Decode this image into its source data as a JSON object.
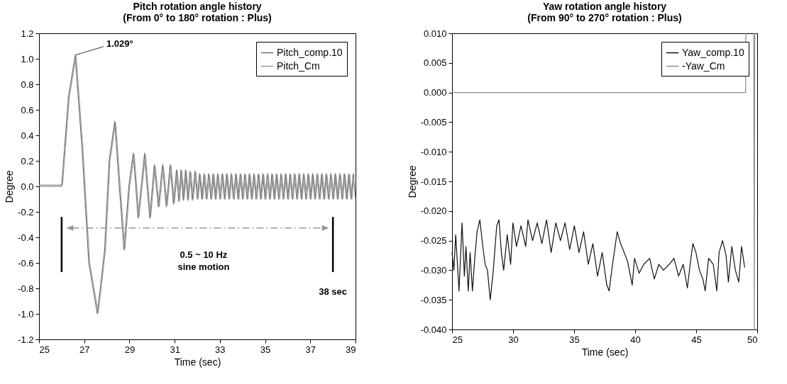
{
  "chart_data": [
    {
      "type": "line",
      "title": "Pitch rotation angle history",
      "subtitle": "(From 0° to 180° rotation : Plus)",
      "xlabel": "Time (sec)",
      "ylabel": "Degree",
      "xlim": [
        25,
        39
      ],
      "xticks": [
        25,
        27,
        29,
        31,
        33,
        35,
        37,
        39
      ],
      "ylim": [
        -1.2,
        1.2
      ],
      "yticks": [
        {
          "value": 1.2,
          "label": "1.2"
        },
        {
          "value": 1,
          "label": "1.0"
        },
        {
          "value": 0.8,
          "label": "0.8"
        },
        {
          "value": 0.6,
          "label": "0.6"
        },
        {
          "value": 0.4,
          "label": "0.4"
        },
        {
          "value": 0.2,
          "label": "0.2"
        },
        {
          "value": 0,
          "label": "0.0"
        },
        {
          "value": -0.2,
          "label": "-0.2"
        },
        {
          "value": -0.4,
          "label": "-0.4"
        },
        {
          "value": -0.6,
          "label": "-0.6"
        },
        {
          "value": -0.8,
          "label": "-0.8"
        },
        {
          "value": -1,
          "label": "-1.0"
        },
        {
          "value": -1.2,
          "label": "-1.2"
        }
      ],
      "grid": false,
      "legend": "top right",
      "marker": "none",
      "annotations": [
        {
          "text": "1.029°",
          "x": 26.6,
          "y": 1.029
        },
        "0.5 ~ 10 Hz\nsine motion"
      ],
      "ref_lines": [
        {
          "axis": "x",
          "value": 26
        },
        {
          "axis": "x",
          "value": 38,
          "label": "38 sec"
        }
      ],
      "series": [
        {
          "name": "Pitch_comp.10",
          "color": "#6e6e6e",
          "x": [
            25,
            26,
            26.3,
            26.6,
            26.9,
            27.2,
            27.58,
            27.9,
            28.1,
            28.35,
            28.55,
            28.76,
            28.97,
            29.17,
            29.28,
            29.38,
            29.52,
            29.67,
            29.78,
            29.9,
            30.1,
            30.28,
            30.46,
            30.63,
            30.8,
            30.95,
            31.08,
            31.18,
            31.28,
            31.38,
            31.48,
            31.58,
            31.68,
            31.78,
            31.9,
            32,
            32.1,
            32.2,
            32.3,
            32.4,
            32.5,
            32.6,
            32.7,
            32.8,
            32.9,
            33,
            33.1,
            33.2,
            33.3,
            33.4,
            33.5,
            33.6,
            33.7,
            33.8,
            33.9,
            34,
            34.1,
            34.2,
            34.3,
            34.4,
            34.5,
            34.6,
            34.7,
            34.8,
            34.9,
            35,
            35.1,
            35.2,
            35.3,
            35.4,
            35.5,
            35.6,
            35.7,
            35.8,
            35.9,
            36,
            36.1,
            36.2,
            36.3,
            36.4,
            36.5,
            36.6,
            36.7,
            36.8,
            36.9,
            37,
            37.1,
            37.2,
            37.3,
            37.4,
            37.5,
            37.6,
            37.7,
            37.8,
            37.9,
            38,
            38.1,
            38.2,
            38.3,
            38.4,
            38.5,
            38.6,
            38.7,
            38.8,
            38.9,
            39
          ],
          "values": [
            0,
            0,
            0.7,
            1.029,
            0.3,
            -0.6,
            -1.0,
            -0.5,
            0.2,
            0.51,
            0,
            -0.5,
            0,
            0.26,
            0,
            -0.25,
            0,
            0.26,
            0,
            -0.25,
            0.17,
            -0.16,
            0.17,
            -0.16,
            0.17,
            -0.14,
            0.13,
            -0.12,
            0.13,
            -0.11,
            0.13,
            -0.11,
            0.12,
            -0.11,
            0.12,
            -0.1,
            0.1,
            -0.1,
            0.1,
            -0.1,
            0.1,
            -0.1,
            0.1,
            -0.1,
            0.1,
            -0.1,
            0.1,
            -0.1,
            0.1,
            -0.1,
            0.1,
            -0.1,
            0.1,
            -0.1,
            0.1,
            -0.1,
            0.1,
            -0.1,
            0.1,
            -0.1,
            0.1,
            -0.1,
            0.1,
            -0.1,
            0.1,
            -0.1,
            0.1,
            -0.1,
            0.1,
            -0.1,
            0.1,
            -0.1,
            0.1,
            -0.1,
            0.1,
            -0.1,
            0.1,
            -0.1,
            0.1,
            -0.1,
            0.1,
            -0.1,
            0.1,
            -0.1,
            0.1,
            -0.1,
            0.1,
            -0.1,
            0.1,
            -0.1,
            0.1,
            -0.1,
            0.1,
            -0.1,
            0.1,
            -0.1,
            0.1,
            -0.1,
            0.1,
            -0.1,
            0.1,
            -0.1,
            0.1,
            -0.1,
            0.1,
            -0.1
          ]
        },
        {
          "name": "Pitch_Cm",
          "color": "#9a9a9a",
          "x": [
            25,
            26.04,
            26.34,
            26.64,
            26.94,
            27.24,
            27.62,
            27.94,
            28.14,
            28.39,
            28.59,
            28.8,
            29.01,
            29.21,
            29.32,
            29.42,
            29.56,
            29.71,
            29.82,
            29.94,
            30.14,
            30.32,
            30.5,
            30.67,
            30.84,
            30.99,
            31.12,
            31.22,
            31.32,
            31.42,
            31.52,
            31.62,
            31.72,
            31.82,
            31.94,
            32.04,
            32.14,
            32.24,
            32.34,
            32.44,
            32.54,
            32.64,
            32.74,
            32.84,
            32.94,
            33.04,
            33.14,
            33.24,
            33.34,
            33.44,
            33.54,
            33.64,
            33.74,
            33.84,
            33.94,
            34.04,
            34.14,
            34.24,
            34.34,
            34.44,
            34.54,
            34.64,
            34.74,
            34.84,
            34.94,
            35.04,
            35.14,
            35.24,
            35.34,
            35.44,
            35.54,
            35.64,
            35.74,
            35.84,
            35.94,
            36.04,
            36.14,
            36.24,
            36.34,
            36.44,
            36.54,
            36.64,
            36.74,
            36.84,
            36.94,
            37.04,
            37.14,
            37.24,
            37.34,
            37.44,
            37.54,
            37.64,
            37.74,
            37.84,
            37.94,
            38.04,
            38.14,
            38.24,
            38.34,
            38.44,
            38.54,
            38.64,
            38.74,
            38.84,
            38.94
          ],
          "values": [
            0.01,
            0.01,
            0.7,
            1.02,
            0.3,
            -0.6,
            -0.99,
            -0.5,
            0.2,
            0.5,
            0,
            -0.49,
            0,
            0.25,
            0,
            -0.24,
            0,
            0.25,
            0,
            -0.24,
            0.16,
            -0.16,
            0.16,
            -0.15,
            0.16,
            -0.13,
            0.12,
            -0.11,
            0.12,
            -0.1,
            0.12,
            -0.1,
            0.11,
            -0.1,
            0.11,
            -0.1,
            0.09,
            -0.1,
            0.09,
            -0.1,
            0.09,
            -0.1,
            0.09,
            -0.1,
            0.09,
            -0.1,
            0.09,
            -0.1,
            0.09,
            -0.1,
            0.09,
            -0.1,
            0.09,
            -0.1,
            0.09,
            -0.1,
            0.09,
            -0.1,
            0.09,
            -0.1,
            0.09,
            -0.1,
            0.09,
            -0.1,
            0.09,
            -0.1,
            0.09,
            -0.1,
            0.09,
            -0.1,
            0.09,
            -0.1,
            0.09,
            -0.1,
            0.09,
            -0.1,
            0.09,
            -0.1,
            0.09,
            -0.1,
            0.09,
            -0.1,
            0.09,
            -0.1,
            0.09,
            -0.1,
            0.09,
            -0.1,
            0.09,
            -0.1,
            0.09,
            -0.1,
            0.09,
            -0.1,
            0.09,
            -0.1,
            0.09,
            -0.1,
            0.09,
            -0.1,
            0.09,
            -0.1,
            0.09,
            -0.1,
            0.09
          ]
        }
      ]
    },
    {
      "type": "line",
      "title": "Yaw rotation angle history",
      "subtitle": "(From 90° to 270° rotation : Plus)",
      "xlabel": "Time (sec)",
      "ylabel": "Degree",
      "xlim": [
        25,
        50
      ],
      "xticks": [
        25,
        30,
        35,
        40,
        45,
        50
      ],
      "ylim": [
        -0.04,
        0.01
      ],
      "yticks": [
        {
          "value": 0.01,
          "label": "0.010"
        },
        {
          "value": 0.005,
          "label": "0.005"
        },
        {
          "value": 0,
          "label": "0.000"
        },
        {
          "value": -0.005,
          "label": "-0.005"
        },
        {
          "value": -0.01,
          "label": "-0.010"
        },
        {
          "value": -0.015,
          "label": "-0.015"
        },
        {
          "value": -0.02,
          "label": "-0.020"
        },
        {
          "value": -0.025,
          "label": "-0.025"
        },
        {
          "value": -0.03,
          "label": "-0.030"
        },
        {
          "value": -0.035,
          "label": "-0.035"
        },
        {
          "value": -0.04,
          "label": "-0.040"
        }
      ],
      "grid": false,
      "legend": "top right",
      "marker": "none",
      "series": [
        {
          "name": "Yaw_comp.10",
          "color": "#111111",
          "x": [
            25,
            25.15,
            25.3,
            25.57,
            25.82,
            26.01,
            26.14,
            26.33,
            26.48,
            26.67,
            26.86,
            27.05,
            27.28,
            27.52,
            27.71,
            27.9,
            28.13,
            28.38,
            28.66,
            28.85,
            29.04,
            29.23,
            29.52,
            29.8,
            29.99,
            30.28,
            30.65,
            31.03,
            31.22,
            31.6,
            31.98,
            32.36,
            32.74,
            33.12,
            33.5,
            33.88,
            34.26,
            34.64,
            35.02,
            35.4,
            35.78,
            36.16,
            36.54,
            36.92,
            37.3,
            37.68,
            37.87,
            38.15,
            38.53,
            38.81,
            39.1,
            39.38,
            39.76,
            39.95,
            40.33,
            40.71,
            41.19,
            41.57,
            41.94,
            42.32,
            42.8,
            43.18,
            43.56,
            43.94,
            44.28,
            44.51,
            44.73,
            44.98,
            45.27,
            45.55,
            45.74,
            46.02,
            46.4,
            46.69,
            46.88,
            47.16,
            47.45,
            47.64,
            47.92,
            48.21,
            48.49,
            48.72,
            48.97
          ],
          "values": [
            -0.027,
            -0.03,
            -0.024,
            -0.0335,
            -0.022,
            -0.031,
            -0.026,
            -0.0335,
            -0.027,
            -0.0335,
            -0.028,
            -0.0235,
            -0.0215,
            -0.026,
            -0.029,
            -0.03,
            -0.035,
            -0.03,
            -0.0225,
            -0.0215,
            -0.027,
            -0.03,
            -0.024,
            -0.029,
            -0.022,
            -0.026,
            -0.0225,
            -0.026,
            -0.0215,
            -0.025,
            -0.022,
            -0.0255,
            -0.0215,
            -0.027,
            -0.022,
            -0.025,
            -0.022,
            -0.0265,
            -0.0225,
            -0.027,
            -0.0235,
            -0.029,
            -0.0255,
            -0.031,
            -0.027,
            -0.0325,
            -0.0335,
            -0.029,
            -0.0235,
            -0.0255,
            -0.027,
            -0.0285,
            -0.0325,
            -0.028,
            -0.0305,
            -0.029,
            -0.028,
            -0.0315,
            -0.029,
            -0.03,
            -0.029,
            -0.028,
            -0.031,
            -0.029,
            -0.033,
            -0.029,
            -0.0255,
            -0.027,
            -0.03,
            -0.0315,
            -0.0335,
            -0.028,
            -0.029,
            -0.0335,
            -0.027,
            -0.025,
            -0.0275,
            -0.032,
            -0.026,
            -0.03,
            -0.032,
            -0.026,
            -0.0295
          ]
        },
        {
          "name": "-Yaw_Cm",
          "color": "#8c8c8c",
          "x": [
            25,
            49.05,
            49.07,
            49.4,
            49.72,
            49.76,
            49.8
          ],
          "values": [
            0,
            0,
            0.01,
            null,
            0.01,
            -0.04,
            0.01
          ]
        }
      ]
    }
  ]
}
